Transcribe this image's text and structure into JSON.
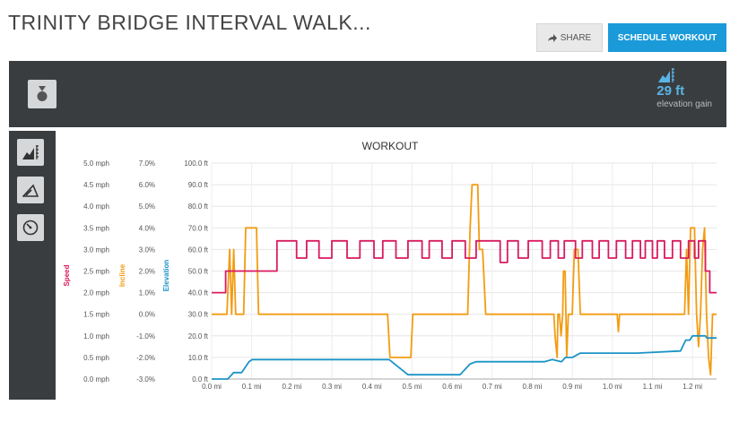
{
  "page": {
    "title": "TRINITY BRIDGE INTERVAL WALK..."
  },
  "actions": {
    "share_label": "SHARE",
    "schedule_label": "SCHEDULE WORKOUT"
  },
  "summary": {
    "value": "29 ft",
    "label": "elevation gain",
    "icon": "elevation-icon",
    "medal_icon": "medal-icon"
  },
  "side_nav": [
    {
      "icon": "elevation-icon"
    },
    {
      "icon": "incline-icon"
    },
    {
      "icon": "speed-gauge-icon"
    }
  ],
  "colors": {
    "speed": "#d81b60",
    "incline": "#f39c12",
    "elevation": "#1b94c6",
    "accent": "#1a9ad9",
    "panel": "#3a3d40"
  },
  "chart_data": {
    "type": "line",
    "title": "WORKOUT",
    "xlim": [
      0,
      1.26
    ],
    "x_ticks": [
      "0.0 mi",
      "0.1 mi",
      "0.2 mi",
      "0.3 mi",
      "0.4 mi",
      "0.5 mi",
      "0.6 mi",
      "0.7 mi",
      "0.8 mi",
      "0.9 mi",
      "1.0 mi",
      "1.1 mi",
      "1.2 mi"
    ],
    "grid": true,
    "axes": [
      {
        "name": "Speed",
        "unit": "mph",
        "color": "#d81b60",
        "ylim": [
          0,
          5
        ],
        "ticks": [
          "0.0 mph",
          "0.5 mph",
          "1.0 mph",
          "1.5 mph",
          "2.0 mph",
          "2.5 mph",
          "3.0 mph",
          "3.5 mph",
          "4.0 mph",
          "4.5 mph",
          "5.0 mph"
        ]
      },
      {
        "name": "Incline",
        "unit": "%",
        "color": "#f39c12",
        "ylim": [
          -3,
          7
        ],
        "ticks": [
          "-3.0%",
          "-2.0%",
          "-1.0%",
          "0.0%",
          "1.0%",
          "2.0%",
          "3.0%",
          "4.0%",
          "5.0%",
          "6.0%",
          "7.0%"
        ]
      },
      {
        "name": "Elevation",
        "unit": "ft",
        "color": "#1b94c6",
        "ylim": [
          0,
          100
        ],
        "ticks": [
          "0.0 ft",
          "10.0 ft",
          "20.0 ft",
          "30.0 ft",
          "40.0 ft",
          "50.0 ft",
          "60.0 ft",
          "70.0 ft",
          "80.0 ft",
          "90.0 ft",
          "100.0 ft"
        ]
      }
    ],
    "series": [
      {
        "name": "Speed",
        "axis": 0,
        "points": [
          [
            0,
            2.0
          ],
          [
            0.035,
            2.0
          ],
          [
            0.035,
            2.5
          ],
          [
            0.163,
            2.5
          ],
          [
            0.163,
            3.2
          ],
          [
            0.212,
            3.2
          ],
          [
            0.212,
            2.8
          ],
          [
            0.237,
            2.8
          ],
          [
            0.237,
            3.2
          ],
          [
            0.268,
            3.2
          ],
          [
            0.268,
            2.8
          ],
          [
            0.3,
            2.8
          ],
          [
            0.3,
            3.2
          ],
          [
            0.338,
            3.2
          ],
          [
            0.338,
            2.8
          ],
          [
            0.37,
            2.8
          ],
          [
            0.37,
            3.2
          ],
          [
            0.405,
            3.2
          ],
          [
            0.405,
            2.8
          ],
          [
            0.427,
            2.8
          ],
          [
            0.427,
            3.2
          ],
          [
            0.46,
            3.2
          ],
          [
            0.46,
            2.8
          ],
          [
            0.49,
            2.8
          ],
          [
            0.49,
            3.2
          ],
          [
            0.525,
            3.2
          ],
          [
            0.525,
            2.8
          ],
          [
            0.543,
            2.8
          ],
          [
            0.543,
            3.2
          ],
          [
            0.575,
            3.2
          ],
          [
            0.575,
            2.8
          ],
          [
            0.6,
            2.8
          ],
          [
            0.6,
            3.2
          ],
          [
            0.633,
            3.2
          ],
          [
            0.633,
            2.8
          ],
          [
            0.66,
            2.8
          ],
          [
            0.66,
            3.2
          ],
          [
            0.72,
            3.2
          ],
          [
            0.72,
            2.7
          ],
          [
            0.738,
            2.7
          ],
          [
            0.738,
            3.2
          ],
          [
            0.765,
            3.2
          ],
          [
            0.765,
            2.8
          ],
          [
            0.79,
            2.8
          ],
          [
            0.79,
            3.2
          ],
          [
            0.825,
            3.2
          ],
          [
            0.825,
            2.8
          ],
          [
            0.845,
            2.8
          ],
          [
            0.845,
            3.2
          ],
          [
            0.865,
            3.2
          ],
          [
            0.865,
            2.8
          ],
          [
            0.88,
            2.8
          ],
          [
            0.88,
            3.2
          ],
          [
            0.908,
            3.2
          ],
          [
            0.908,
            2.8
          ],
          [
            0.925,
            2.8
          ],
          [
            0.925,
            3.2
          ],
          [
            0.95,
            3.2
          ],
          [
            0.95,
            2.8
          ],
          [
            0.967,
            2.8
          ],
          [
            0.967,
            3.2
          ],
          [
            0.99,
            3.2
          ],
          [
            0.99,
            2.8
          ],
          [
            1.01,
            2.8
          ],
          [
            1.01,
            3.2
          ],
          [
            1.033,
            3.2
          ],
          [
            1.033,
            2.8
          ],
          [
            1.05,
            2.8
          ],
          [
            1.05,
            3.2
          ],
          [
            1.07,
            3.2
          ],
          [
            1.07,
            2.8
          ],
          [
            1.082,
            2.8
          ],
          [
            1.082,
            3.2
          ],
          [
            1.1,
            3.2
          ],
          [
            1.1,
            2.8
          ],
          [
            1.112,
            2.8
          ],
          [
            1.112,
            3.2
          ],
          [
            1.13,
            3.2
          ],
          [
            1.13,
            2.8
          ],
          [
            1.15,
            2.8
          ],
          [
            1.15,
            3.2
          ],
          [
            1.17,
            3.2
          ],
          [
            1.17,
            2.8
          ],
          [
            1.19,
            2.8
          ],
          [
            1.19,
            3.2
          ],
          [
            1.205,
            3.2
          ],
          [
            1.205,
            2.8
          ],
          [
            1.215,
            2.8
          ],
          [
            1.215,
            3.2
          ],
          [
            1.232,
            3.2
          ],
          [
            1.232,
            2.5
          ],
          [
            1.243,
            2.5
          ],
          [
            1.243,
            2.0
          ],
          [
            1.26,
            2.0
          ]
        ]
      },
      {
        "name": "Incline",
        "axis": 1,
        "points": [
          [
            0,
            0
          ],
          [
            0.038,
            0
          ],
          [
            0.045,
            3.0
          ],
          [
            0.05,
            0
          ],
          [
            0.055,
            3.0
          ],
          [
            0.06,
            0
          ],
          [
            0.07,
            0
          ],
          [
            0.08,
            0
          ],
          [
            0.085,
            4.0
          ],
          [
            0.112,
            4.0
          ],
          [
            0.117,
            0
          ],
          [
            0.439,
            0
          ],
          [
            0.445,
            -2.0
          ],
          [
            0.497,
            -2.0
          ],
          [
            0.502,
            0
          ],
          [
            0.639,
            0
          ],
          [
            0.645,
            4.0
          ],
          [
            0.65,
            6.0
          ],
          [
            0.664,
            6.0
          ],
          [
            0.668,
            3.0
          ],
          [
            0.676,
            3.0
          ],
          [
            0.684,
            0
          ],
          [
            0.854,
            0
          ],
          [
            0.857,
            -1.0
          ],
          [
            0.862,
            -2.0
          ],
          [
            0.864,
            0
          ],
          [
            0.868,
            0
          ],
          [
            0.872,
            -1.0
          ],
          [
            0.876,
            0
          ],
          [
            0.878,
            2.0
          ],
          [
            0.882,
            2.0
          ],
          [
            0.886,
            -2.0
          ],
          [
            0.89,
            0
          ],
          [
            0.9,
            0
          ],
          [
            0.905,
            3.0
          ],
          [
            0.914,
            3.0
          ],
          [
            0.92,
            0
          ],
          [
            1.012,
            0
          ],
          [
            1.015,
            -0.8
          ],
          [
            1.018,
            0
          ],
          [
            1.18,
            0
          ],
          [
            1.185,
            3.0
          ],
          [
            1.19,
            0
          ],
          [
            1.195,
            4.0
          ],
          [
            1.205,
            4.0
          ],
          [
            1.21,
            0
          ],
          [
            1.215,
            -1.5
          ],
          [
            1.22,
            0
          ],
          [
            1.225,
            3.0
          ],
          [
            1.23,
            4.0
          ],
          [
            1.235,
            0
          ],
          [
            1.24,
            -2.0
          ],
          [
            1.245,
            -2.8
          ],
          [
            1.25,
            0
          ],
          [
            1.26,
            0
          ]
        ]
      },
      {
        "name": "Elevation",
        "axis": 2,
        "points": [
          [
            0,
            0
          ],
          [
            0.04,
            0
          ],
          [
            0.055,
            3
          ],
          [
            0.075,
            3
          ],
          [
            0.093,
            8
          ],
          [
            0.101,
            9
          ],
          [
            0.443,
            9
          ],
          [
            0.49,
            2
          ],
          [
            0.62,
            2
          ],
          [
            0.645,
            7
          ],
          [
            0.66,
            8
          ],
          [
            0.83,
            8
          ],
          [
            0.85,
            9
          ],
          [
            0.873,
            8
          ],
          [
            0.883,
            10
          ],
          [
            0.9,
            10
          ],
          [
            0.92,
            12
          ],
          [
            1.05,
            12
          ],
          [
            1.06,
            12
          ],
          [
            1.17,
            13
          ],
          [
            1.183,
            18
          ],
          [
            1.193,
            18
          ],
          [
            1.2,
            20
          ],
          [
            1.232,
            20
          ],
          [
            1.236,
            19
          ],
          [
            1.26,
            19
          ]
        ]
      }
    ]
  }
}
